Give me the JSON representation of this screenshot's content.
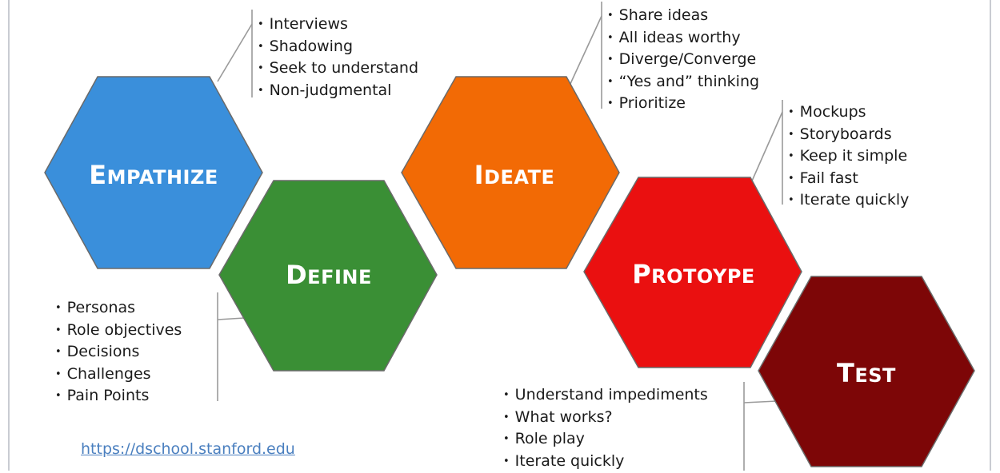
{
  "stages": [
    {
      "id": "empathize",
      "label": "EMPATHIZE",
      "color": "#3a8fdb",
      "bullets": [
        "Interviews",
        "Shadowing",
        "Seek to understand",
        "Non-judgmental"
      ]
    },
    {
      "id": "define",
      "label": "DEFINE",
      "color": "#3a8f35",
      "bullets": [
        "Personas",
        "Role objectives",
        "Decisions",
        "Challenges",
        "Pain Points"
      ]
    },
    {
      "id": "ideate",
      "label": "IDEATE",
      "color": "#f26a05",
      "bullets": [
        "Share ideas",
        "All ideas worthy",
        "Diverge/Converge",
        "“Yes and” thinking",
        "Prioritize"
      ]
    },
    {
      "id": "prototype",
      "label": "PROTOYPE",
      "color": "#ea1010",
      "bullets": [
        "Mockups",
        "Storyboards",
        "Keep it simple",
        "Fail fast",
        "Iterate quickly"
      ]
    },
    {
      "id": "test",
      "label": "TEST",
      "color": "#7d0607",
      "bullets": [
        "Understand impediments",
        "What works?",
        "Role play",
        "Iterate quickly"
      ]
    }
  ],
  "link": {
    "text": "https://dschool.stanford.edu"
  },
  "colors": {
    "link": "#4a7fbf",
    "connector": "#9a9a9a"
  }
}
